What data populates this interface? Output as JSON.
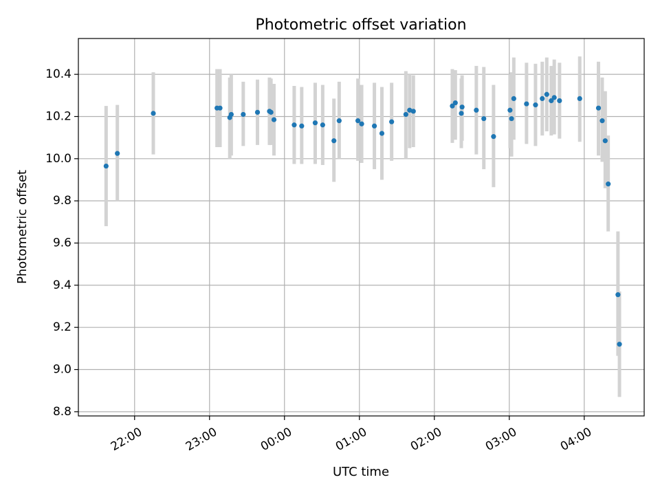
{
  "chart_data": {
    "type": "scatter",
    "title": "Photometric offset variation",
    "xlabel": "UTC time",
    "ylabel": "Photometric offset",
    "x_unit": "hours since midnight UTC (negative = previous day)",
    "xlim": [
      -2.75,
      4.8
    ],
    "ylim": [
      8.78,
      10.57
    ],
    "x_ticks": [
      {
        "value": -2.0,
        "label": "22:00"
      },
      {
        "value": -1.0,
        "label": "23:00"
      },
      {
        "value": 0.0,
        "label": "00:00"
      },
      {
        "value": 1.0,
        "label": "01:00"
      },
      {
        "value": 2.0,
        "label": "02:00"
      },
      {
        "value": 3.0,
        "label": "03:00"
      },
      {
        "value": 4.0,
        "label": "04:00"
      }
    ],
    "y_ticks": [
      {
        "value": 8.8,
        "label": "8.8"
      },
      {
        "value": 9.0,
        "label": "9.0"
      },
      {
        "value": 9.2,
        "label": "9.2"
      },
      {
        "value": 9.4,
        "label": "9.4"
      },
      {
        "value": 9.6,
        "label": "9.6"
      },
      {
        "value": 9.8,
        "label": "9.8"
      },
      {
        "value": 10.0,
        "label": "10.0"
      },
      {
        "value": 10.2,
        "label": "10.2"
      },
      {
        "value": 10.4,
        "label": "10.4"
      }
    ],
    "grid": true,
    "series": [
      {
        "name": "offset",
        "color": "#1f77b4",
        "errorbar_color": "#d3d3d3",
        "points": [
          {
            "x": -2.38,
            "y": 9.965,
            "lo": 9.68,
            "hi": 10.25
          },
          {
            "x": -2.23,
            "y": 10.025,
            "lo": 9.8,
            "hi": 10.255
          },
          {
            "x": -1.75,
            "y": 10.215,
            "lo": 10.02,
            "hi": 10.41
          },
          {
            "x": -0.9,
            "y": 10.24,
            "lo": 10.055,
            "hi": 10.425
          },
          {
            "x": -0.86,
            "y": 10.24,
            "lo": 10.055,
            "hi": 10.425
          },
          {
            "x": -0.73,
            "y": 10.195,
            "lo": 10.0,
            "hi": 10.385
          },
          {
            "x": -0.71,
            "y": 10.21,
            "lo": 10.015,
            "hi": 10.4
          },
          {
            "x": -0.55,
            "y": 10.21,
            "lo": 10.06,
            "hi": 10.365
          },
          {
            "x": -0.36,
            "y": 10.22,
            "lo": 10.065,
            "hi": 10.375
          },
          {
            "x": -0.2,
            "y": 10.225,
            "lo": 10.065,
            "hi": 10.385
          },
          {
            "x": -0.18,
            "y": 10.22,
            "lo": 10.065,
            "hi": 10.38
          },
          {
            "x": -0.14,
            "y": 10.185,
            "lo": 10.015,
            "hi": 10.355
          },
          {
            "x": 0.13,
            "y": 10.16,
            "lo": 9.975,
            "hi": 10.345
          },
          {
            "x": 0.23,
            "y": 10.155,
            "lo": 9.975,
            "hi": 10.34
          },
          {
            "x": 0.41,
            "y": 10.17,
            "lo": 9.975,
            "hi": 10.36
          },
          {
            "x": 0.51,
            "y": 10.16,
            "lo": 9.97,
            "hi": 10.35
          },
          {
            "x": 0.66,
            "y": 10.085,
            "lo": 9.89,
            "hi": 10.285
          },
          {
            "x": 0.73,
            "y": 10.18,
            "lo": 10.0,
            "hi": 10.365
          },
          {
            "x": 0.98,
            "y": 10.18,
            "lo": 9.99,
            "hi": 10.38
          },
          {
            "x": 1.03,
            "y": 10.165,
            "lo": 9.98,
            "hi": 10.35
          },
          {
            "x": 1.2,
            "y": 10.155,
            "lo": 9.95,
            "hi": 10.36
          },
          {
            "x": 1.3,
            "y": 10.12,
            "lo": 9.9,
            "hi": 10.34
          },
          {
            "x": 1.43,
            "y": 10.175,
            "lo": 9.99,
            "hi": 10.36
          },
          {
            "x": 1.62,
            "y": 10.21,
            "lo": 10.0,
            "hi": 10.415
          },
          {
            "x": 1.67,
            "y": 10.23,
            "lo": 10.05,
            "hi": 10.4
          },
          {
            "x": 1.72,
            "y": 10.225,
            "lo": 10.055,
            "hi": 10.395
          },
          {
            "x": 2.24,
            "y": 10.25,
            "lo": 10.075,
            "hi": 10.425
          },
          {
            "x": 2.28,
            "y": 10.265,
            "lo": 10.09,
            "hi": 10.42
          },
          {
            "x": 2.36,
            "y": 10.215,
            "lo": 10.05,
            "hi": 10.38
          },
          {
            "x": 2.37,
            "y": 10.245,
            "lo": 10.085,
            "hi": 10.395
          },
          {
            "x": 2.56,
            "y": 10.23,
            "lo": 10.02,
            "hi": 10.44
          },
          {
            "x": 2.66,
            "y": 10.19,
            "lo": 9.95,
            "hi": 10.435
          },
          {
            "x": 2.79,
            "y": 10.105,
            "lo": 9.865,
            "hi": 10.35
          },
          {
            "x": 3.01,
            "y": 10.23,
            "lo": 10.05,
            "hi": 10.4
          },
          {
            "x": 3.03,
            "y": 10.19,
            "lo": 10.01,
            "hi": 10.41
          },
          {
            "x": 3.06,
            "y": 10.285,
            "lo": 10.09,
            "hi": 10.48
          },
          {
            "x": 3.23,
            "y": 10.26,
            "lo": 10.07,
            "hi": 10.455
          },
          {
            "x": 3.35,
            "y": 10.255,
            "lo": 10.06,
            "hi": 10.45
          },
          {
            "x": 3.44,
            "y": 10.285,
            "lo": 10.11,
            "hi": 10.46
          },
          {
            "x": 3.5,
            "y": 10.305,
            "lo": 10.13,
            "hi": 10.48
          },
          {
            "x": 3.56,
            "y": 10.275,
            "lo": 10.11,
            "hi": 10.44
          },
          {
            "x": 3.6,
            "y": 10.29,
            "lo": 10.115,
            "hi": 10.47
          },
          {
            "x": 3.67,
            "y": 10.275,
            "lo": 10.095,
            "hi": 10.455
          },
          {
            "x": 3.94,
            "y": 10.285,
            "lo": 10.08,
            "hi": 10.485
          },
          {
            "x": 4.19,
            "y": 10.24,
            "lo": 10.015,
            "hi": 10.46
          },
          {
            "x": 4.24,
            "y": 10.18,
            "lo": 9.985,
            "hi": 10.385
          },
          {
            "x": 4.28,
            "y": 10.085,
            "lo": 9.86,
            "hi": 10.32
          },
          {
            "x": 4.32,
            "y": 9.88,
            "lo": 9.655,
            "hi": 10.11
          },
          {
            "x": 4.45,
            "y": 9.355,
            "lo": 9.065,
            "hi": 9.655
          },
          {
            "x": 4.47,
            "y": 9.12,
            "lo": 8.87,
            "hi": 9.37
          }
        ]
      }
    ]
  }
}
